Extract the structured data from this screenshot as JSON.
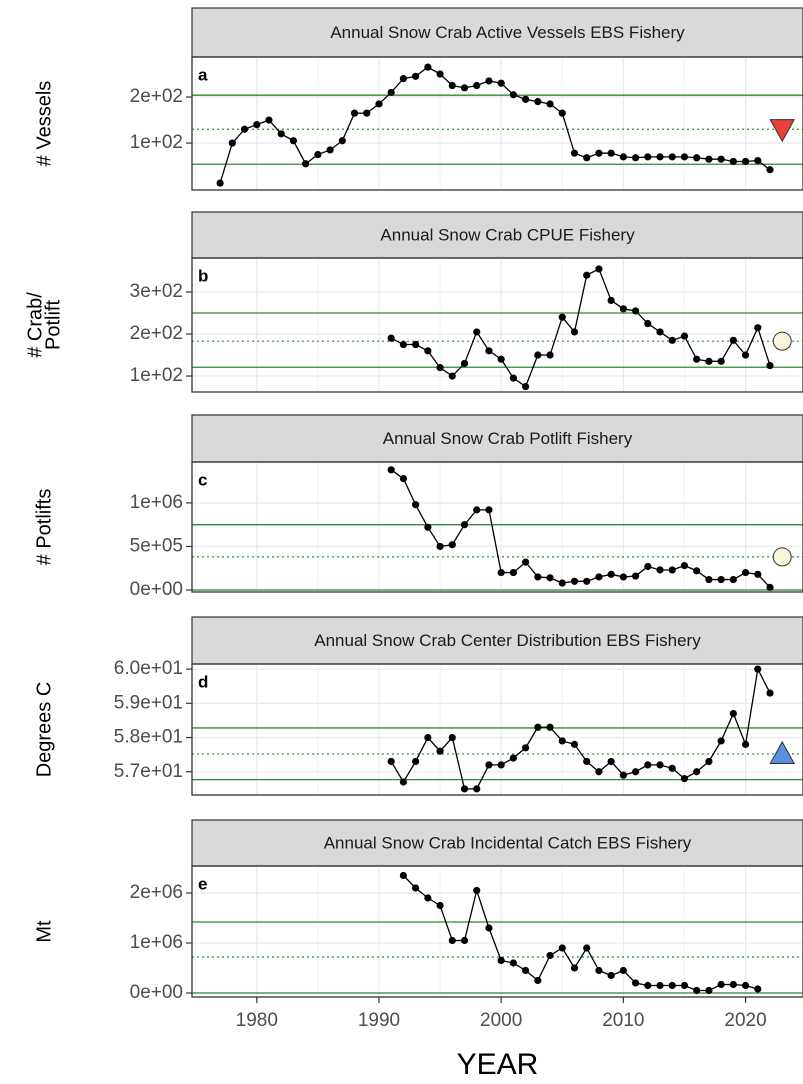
{
  "chart_data": [
    {
      "type": "line",
      "label": "a",
      "title": "Annual Snow Crab Active Vessels EBS Fishery",
      "ylabel": [
        "# Vessels"
      ],
      "x": [
        1977,
        1978,
        1979,
        1980,
        1981,
        1982,
        1983,
        1984,
        1985,
        1986,
        1987,
        1988,
        1989,
        1990,
        1991,
        1992,
        1993,
        1994,
        1995,
        1996,
        1997,
        1998,
        1999,
        2000,
        2001,
        2002,
        2003,
        2004,
        2005,
        2006,
        2007,
        2008,
        2009,
        2010,
        2011,
        2012,
        2013,
        2014,
        2015,
        2016,
        2017,
        2018,
        2019,
        2020,
        2021,
        2022
      ],
      "values": [
        13,
        100,
        130,
        140,
        150,
        120,
        105,
        55,
        75,
        85,
        105,
        165,
        165,
        185,
        210,
        240,
        245,
        265,
        250,
        225,
        220,
        225,
        235,
        230,
        205,
        195,
        190,
        185,
        165,
        78,
        68,
        78,
        78,
        70,
        68,
        70,
        70,
        70,
        70,
        68,
        65,
        65,
        60,
        60,
        62,
        42
      ],
      "xlim": [
        1974.7,
        2024.7
      ],
      "ylim": [
        -2,
        287
      ],
      "yticks": [
        {
          "value": 100,
          "label": "1e+02"
        },
        {
          "value": 200,
          "label": "2e+02"
        }
      ],
      "mean": 130,
      "upper": 204,
      "lower": 54,
      "trend_marker": {
        "shape": "triangle-down",
        "color": "#e8403a",
        "x": 2023
      }
    },
    {
      "type": "line",
      "label": "b",
      "title": "Annual Snow Crab CPUE Fishery",
      "ylabel": [
        "# Crab/",
        "Potlift"
      ],
      "x": [
        1991,
        1992,
        1993,
        1994,
        1995,
        1996,
        1997,
        1998,
        1999,
        2000,
        2001,
        2002,
        2003,
        2004,
        2005,
        2006,
        2007,
        2008,
        2009,
        2010,
        2011,
        2012,
        2013,
        2014,
        2015,
        2016,
        2017,
        2018,
        2019,
        2020,
        2021,
        2022
      ],
      "values": [
        190,
        175,
        175,
        160,
        120,
        100,
        130,
        205,
        160,
        140,
        95,
        75,
        150,
        150,
        240,
        205,
        340,
        355,
        280,
        260,
        255,
        225,
        205,
        185,
        195,
        140,
        135,
        135,
        185,
        150,
        215,
        125
      ],
      "xlim": [
        1974.7,
        2024.7
      ],
      "ylim": [
        62,
        381
      ],
      "yticks": [
        {
          "value": 100,
          "label": "1e+02"
        },
        {
          "value": 200,
          "label": "2e+02"
        },
        {
          "value": 300,
          "label": "3e+02"
        }
      ],
      "mean": 183,
      "upper": 250,
      "lower": 121,
      "trend_marker": {
        "shape": "circle",
        "color": "#f7f5dc",
        "x": 2023
      }
    },
    {
      "type": "line",
      "label": "c",
      "title": "Annual Snow Crab Potlift Fishery",
      "ylabel": [
        "# Potlifts"
      ],
      "x": [
        1991,
        1992,
        1993,
        1994,
        1995,
        1996,
        1997,
        1998,
        1999,
        2000,
        2001,
        2002,
        2003,
        2004,
        2005,
        2006,
        2007,
        2008,
        2009,
        2010,
        2011,
        2012,
        2013,
        2014,
        2015,
        2016,
        2017,
        2018,
        2019,
        2020,
        2021,
        2022
      ],
      "values": [
        1380000,
        1280000,
        980000,
        720000,
        500000,
        520000,
        750000,
        920000,
        920000,
        200000,
        200000,
        320000,
        150000,
        140000,
        80000,
        100000,
        100000,
        150000,
        180000,
        150000,
        160000,
        270000,
        230000,
        230000,
        280000,
        220000,
        120000,
        120000,
        120000,
        200000,
        180000,
        30000
      ],
      "xlim": [
        1974.7,
        2024.7
      ],
      "ylim": [
        -23000,
        1470000
      ],
      "yticks": [
        {
          "value": 0,
          "label": "0e+00"
        },
        {
          "value": 500000,
          "label": "5e+05"
        },
        {
          "value": 1000000,
          "label": "1e+06"
        }
      ],
      "mean": 380000,
      "upper": 750000,
      "lower": 0,
      "trend_marker": {
        "shape": "circle",
        "color": "#f7f5dc",
        "x": 2023
      }
    },
    {
      "type": "line",
      "label": "d",
      "title": "Annual Snow Crab Center Distribution EBS Fishery",
      "ylabel": [
        "Degrees C"
      ],
      "x": [
        1991,
        1992,
        1993,
        1994,
        1995,
        1996,
        1997,
        1998,
        1999,
        2000,
        2001,
        2002,
        2003,
        2004,
        2005,
        2006,
        2007,
        2008,
        2009,
        2010,
        2011,
        2012,
        2013,
        2014,
        2015,
        2016,
        2017,
        2018,
        2019,
        2020,
        2021,
        2022
      ],
      "values": [
        57.3,
        56.7,
        57.3,
        58.0,
        57.6,
        58.0,
        56.5,
        56.5,
        57.2,
        57.2,
        57.4,
        57.7,
        58.3,
        58.3,
        57.9,
        57.8,
        57.3,
        57.0,
        57.3,
        56.9,
        57.0,
        57.2,
        57.2,
        57.1,
        56.8,
        57.0,
        57.3,
        57.9,
        58.7,
        57.8,
        60.0,
        59.3
      ],
      "xlim": [
        1974.7,
        2024.7
      ],
      "ylim": [
        56.32,
        60.15
      ],
      "yticks": [
        {
          "value": 57,
          "label": "5.7e+01"
        },
        {
          "value": 58,
          "label": "5.8e+01"
        },
        {
          "value": 59,
          "label": "5.9e+01"
        },
        {
          "value": 60,
          "label": "6.0e+01"
        }
      ],
      "mean": 57.52,
      "upper": 58.28,
      "lower": 56.77,
      "trend_marker": {
        "shape": "triangle-up",
        "color": "#5b8ee0",
        "x": 2023
      }
    },
    {
      "type": "line",
      "label": "e",
      "title": "Annual Snow Crab Incidental Catch EBS Fishery",
      "ylabel": [
        "Mt"
      ],
      "x": [
        1992,
        1993,
        1994,
        1995,
        1996,
        1997,
        1998,
        1999,
        2000,
        2001,
        2002,
        2003,
        2004,
        2005,
        2006,
        2007,
        2008,
        2009,
        2010,
        2011,
        2012,
        2013,
        2014,
        2015,
        2016,
        2017,
        2018,
        2019,
        2020,
        2021
      ],
      "values": [
        2350000,
        2100000,
        1900000,
        1750000,
        1050000,
        1050000,
        2050000,
        1300000,
        650000,
        600000,
        450000,
        250000,
        750000,
        900000,
        500000,
        900000,
        450000,
        350000,
        450000,
        200000,
        150000,
        150000,
        150000,
        150000,
        50000,
        50000,
        170000,
        170000,
        150000,
        80000
      ],
      "xlim": [
        1974.7,
        2024.7
      ],
      "ylim": [
        -80000,
        2540000
      ],
      "yticks": [
        {
          "value": 0,
          "label": "0e+00"
        },
        {
          "value": 1000000,
          "label": "1e+06"
        },
        {
          "value": 2000000,
          "label": "2e+06"
        }
      ],
      "xticks": [
        1980,
        1990,
        2000,
        2010,
        2020
      ],
      "xlabel": "YEAR",
      "mean": 720000,
      "upper": 1420000,
      "lower": 0
    }
  ]
}
